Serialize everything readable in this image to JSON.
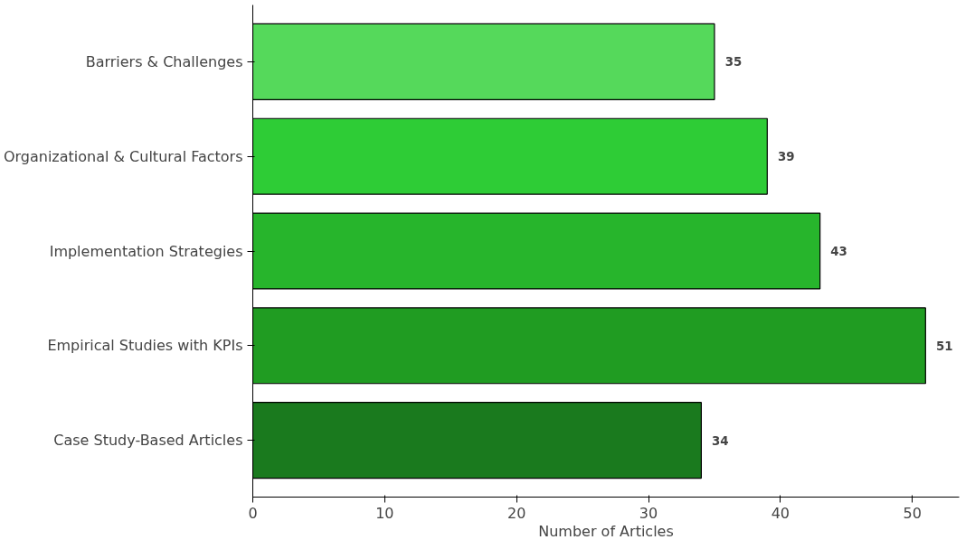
{
  "chart_data": {
    "type": "bar",
    "orientation": "horizontal",
    "xlabel": "Number of Articles",
    "categories": [
      "Barriers & Challenges",
      "Organizational & Cultural Factors",
      "Implementation Strategies",
      "Empirical Studies with KPIs",
      "Case Study-Based Articles"
    ],
    "values": [
      35,
      39,
      43,
      51,
      34
    ],
    "colors": [
      "#55d95b",
      "#2ecc36",
      "#27b52c",
      "#209c22",
      "#1a7a1e"
    ],
    "xlim": [
      0,
      53.55
    ],
    "xticks": [
      0,
      10,
      20,
      30,
      40,
      50
    ],
    "grid": false,
    "data_labels": true
  }
}
